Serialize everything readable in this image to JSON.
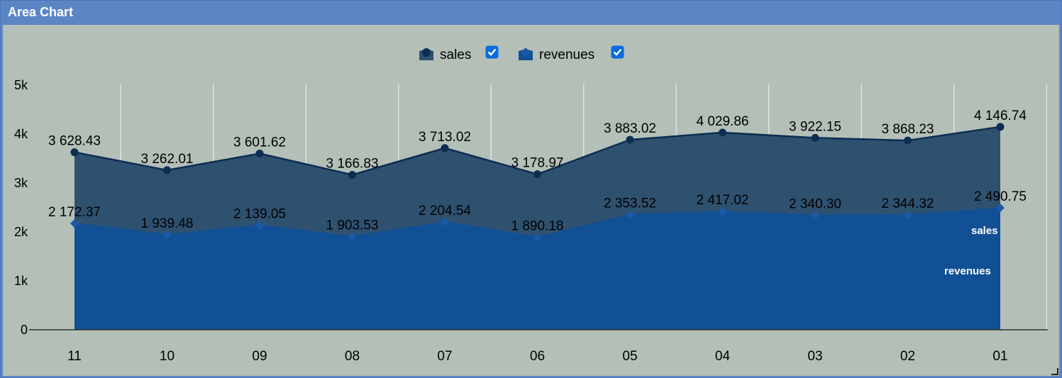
{
  "panel": {
    "title": "Area Chart"
  },
  "chart_data": {
    "type": "area",
    "categories": [
      "11",
      "10",
      "09",
      "08",
      "07",
      "06",
      "05",
      "04",
      "03",
      "02",
      "01"
    ],
    "series": [
      {
        "name": "sales",
        "checked": true,
        "color": "#2f5170",
        "line_color": "#0d2d52",
        "marker": "circle",
        "values": [
          3628.43,
          3262.01,
          3601.62,
          3166.83,
          3713.02,
          3178.97,
          3883.02,
          4029.86,
          3922.15,
          3868.23,
          4146.74
        ],
        "labels": [
          "3 628.43",
          "3 262.01",
          "3 601.62",
          "3 166.83",
          "3 713.02",
          "3 178.97",
          "3 883.02",
          "4 029.86",
          "3 922.15",
          "3 868.23",
          "4 146.74"
        ]
      },
      {
        "name": "revenues",
        "checked": true,
        "color": "#125095",
        "line_color": "#125095",
        "marker": "diamond",
        "values": [
          2172.37,
          1939.48,
          2139.05,
          1903.53,
          2204.54,
          1890.18,
          2353.52,
          2417.02,
          2340.3,
          2344.32,
          2490.75
        ],
        "labels": [
          "2 172.37",
          "1 939.48",
          "2 139.05",
          "1 903.53",
          "2 204.54",
          "1 890.18",
          "2 353.52",
          "2 417.02",
          "2 340.30",
          "2 344.32",
          "2 490.75"
        ]
      }
    ],
    "yticks": [
      0,
      1000,
      2000,
      3000,
      4000,
      5000
    ],
    "ytick_labels": [
      "0",
      "1k",
      "2k",
      "3k",
      "4k",
      "5k"
    ],
    "ylim": [
      0,
      5000
    ],
    "grid": true,
    "legend_position": "top-center",
    "series_end_labels": [
      "sales",
      "revenues"
    ]
  }
}
